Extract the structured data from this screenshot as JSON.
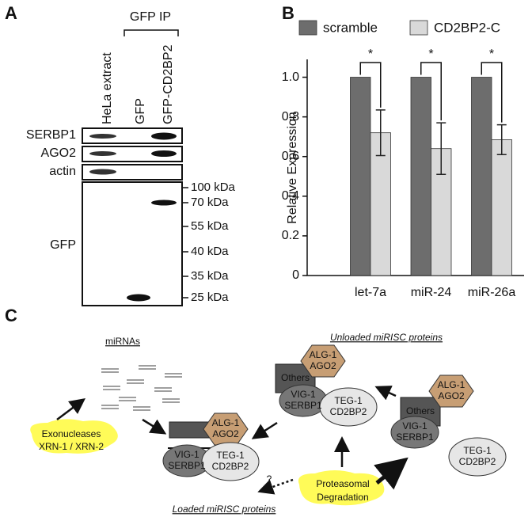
{
  "panel_a": {
    "label": "A",
    "ip_label": "GFP IP",
    "lanes": [
      "HeLa extract",
      "GFP",
      "GFP-CD2BP2"
    ],
    "blots": [
      "SERBP1",
      "AGO2",
      "actin",
      "GFP"
    ],
    "markers": [
      "100 kDa",
      "70 kDa",
      "55 kDa",
      "40 kDa",
      "35 kDa",
      "25 kDa"
    ]
  },
  "chart_data": {
    "type": "bar",
    "panel_label": "B",
    "y_label": "Relative Expression",
    "categories": [
      "let-7a",
      "miR-24",
      "miR-26a"
    ],
    "series": [
      {
        "name": "scramble",
        "color": "#6d6d6d",
        "values": [
          1,
          1,
          1
        ]
      },
      {
        "name": "CD2BP2-C",
        "color": "#d9d9d9",
        "values": [
          0.72,
          0.64,
          0.685
        ],
        "errors": [
          0.115,
          0.13,
          0.075
        ]
      }
    ],
    "annotations": [
      "*",
      "*",
      "*"
    ],
    "ylim": [
      0,
      1.09
    ],
    "yticks": [
      0,
      0.2,
      0.4,
      0.6,
      0.8,
      {
        "value": 1,
        "label": "1.0"
      }
    ],
    "legend": "top"
  },
  "panel_c": {
    "label": "C",
    "mirnas": "miRNAs",
    "unloaded": "Unloaded miRISC proteins",
    "loaded": "Loaded miRISC proteins",
    "exonucleases": [
      "Exonucleases",
      "XRN-1 / XRN-2"
    ],
    "degradation": [
      "Proteasomal",
      "Degradation"
    ],
    "question": "?",
    "complexes": [
      {
        "alg": [
          "ALG-1",
          "AGO2"
        ],
        "vig": [
          "VIG-1",
          "SERBP1"
        ],
        "teg": [
          "TEG-1",
          "CD2BP2"
        ]
      },
      {
        "alg": [
          "ALG-1",
          "AGO2"
        ],
        "others": "Others",
        "vig": [
          "VIG-1",
          "SERBP1"
        ],
        "teg": [
          "TEG-1",
          "CD2BP2"
        ]
      },
      {
        "alg": [
          "ALG-1",
          "AGO2"
        ],
        "others": "Others",
        "vig": [
          "VIG-1",
          "SERBP1"
        ],
        "teg": [
          "TEG-1",
          "CD2BP2"
        ]
      }
    ]
  }
}
